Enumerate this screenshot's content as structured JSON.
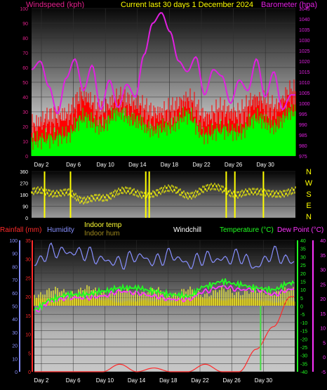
{
  "header": {
    "wind_label": "Windspeed (kph)",
    "title": "Current last 30 days 1 December 2024",
    "baro_label": "Barometer (hpa)"
  },
  "colors": {
    "background": "#000000",
    "wind_label": "#e0208a",
    "title": "#ffff00",
    "barometer": "#e020e0",
    "gust": "#ff0000",
    "avg_wind": "#00ff00",
    "direction": "#ffff00",
    "rain": "#ff2a2a",
    "humidity": "#8890ff",
    "indoor_temp": "#ffff33",
    "indoor_hum": "#a08a1e",
    "windchill": "#ffffff",
    "temperature": "#22ff22",
    "dew_point": "#ff33ff"
  },
  "day_labels": [
    "Day 2",
    "Day 6",
    "Day 10",
    "Day 14",
    "Day 18",
    "Day 22",
    "Day 26",
    "Day 30"
  ],
  "direction": {
    "ticks": [
      "360",
      "270",
      "180",
      "90",
      "0"
    ],
    "compass": [
      "N",
      "W",
      "S",
      "E",
      "N"
    ]
  },
  "legend": {
    "rainfall": "Rainfall (mm)",
    "humidity": "Humidity",
    "indoor_temp": "Indoor temp",
    "indoor_hum": "Indoor hum",
    "windchill": "Windchill",
    "temperature": "Temperature (°C)",
    "dew_point": "Dew Point (°C)"
  },
  "chart_data": [
    {
      "type": "line",
      "title": "Current last 30 days 1 December 2024",
      "x_ticks": [
        "Day 2",
        "Day 6",
        "Day 10",
        "Day 14",
        "Day 18",
        "Day 22",
        "Day 26",
        "Day 30"
      ],
      "y_left": {
        "label": "Windspeed (kph)",
        "range": [
          0,
          100
        ],
        "ticks": [
          "0",
          "10",
          "20",
          "30",
          "40",
          "50",
          "60",
          "70",
          "80",
          "90",
          "100"
        ]
      },
      "y_right": {
        "label": "Barometer (hpa)",
        "range": [
          975,
          1045
        ],
        "ticks": [
          "975",
          "980",
          "985",
          "990",
          "995",
          "1000",
          "1005",
          "1010",
          "1015",
          "1020",
          "1025",
          "1030",
          "1035",
          "1040",
          "1045"
        ]
      },
      "series": [
        {
          "name": "Barometer (hpa)",
          "axis": "right",
          "x": [
            1,
            2,
            3,
            4,
            5,
            6,
            7,
            8,
            9,
            10,
            11,
            12,
            13,
            14,
            15,
            16,
            17,
            18,
            19,
            20,
            21,
            22,
            23,
            24,
            25,
            26,
            27,
            28,
            29,
            30,
            31
          ],
          "values": [
            1016,
            1020,
            1008,
            995,
            1012,
            1021,
            1006,
            1018,
            997,
            1011,
            998,
            1009,
            1003,
            1023,
            1038,
            1043,
            1034,
            1020,
            1015,
            1022,
            1004,
            1016,
            1013,
            1000,
            1011,
            1006,
            1021,
            1003,
            1015,
            997,
            1004
          ]
        },
        {
          "name": "Gust",
          "axis": "left",
          "x": [
            1,
            3,
            5,
            7,
            9,
            11,
            13,
            15,
            17,
            19,
            21,
            23,
            25,
            27,
            29,
            31
          ],
          "values": [
            20,
            25,
            27,
            40,
            30,
            38,
            35,
            28,
            30,
            38,
            26,
            30,
            28,
            38,
            32,
            42
          ]
        },
        {
          "name": "Average wind",
          "axis": "left",
          "x": [
            1,
            3,
            5,
            7,
            9,
            11,
            13,
            15,
            17,
            19,
            21,
            23,
            25,
            27,
            29,
            31
          ],
          "values": [
            10,
            12,
            14,
            26,
            20,
            30,
            24,
            18,
            20,
            28,
            14,
            18,
            16,
            26,
            20,
            30
          ]
        }
      ]
    },
    {
      "type": "line",
      "y_left": {
        "range": [
          0,
          360
        ],
        "ticks": [
          "360",
          "270",
          "180",
          "90",
          "0"
        ]
      },
      "y_right": {
        "ticks": [
          "N",
          "W",
          "S",
          "E",
          "N"
        ]
      },
      "series": [
        {
          "name": "Wind direction",
          "x": [
            1,
            3,
            5,
            7,
            9,
            11,
            13,
            15,
            17,
            19,
            21,
            23,
            25,
            27,
            29,
            31
          ],
          "values": [
            210,
            190,
            230,
            120,
            180,
            205,
            195,
            210,
            215,
            200,
            225,
            230,
            205,
            190,
            215,
            200
          ]
        }
      ]
    },
    {
      "type": "line",
      "y_left": [
        {
          "label": "Rainfall (mm)",
          "range": [
            0,
            35
          ],
          "ticks": [
            "0",
            "5",
            "10",
            "15",
            "20",
            "25",
            "30",
            "35"
          ]
        },
        {
          "label": "Humidity",
          "range": [
            0,
            100
          ],
          "ticks": [
            "0",
            "10",
            "20",
            "30",
            "40",
            "50",
            "60",
            "70",
            "80",
            "90",
            "100"
          ]
        }
      ],
      "y_right": [
        {
          "label": "Temperature (°C)",
          "range": [
            -40,
            40
          ],
          "ticks": [
            "-40",
            "-35",
            "-30",
            "-25",
            "-20",
            "-15",
            "-10",
            "-5",
            "0",
            "5",
            "10",
            "15",
            "20",
            "25",
            "30",
            "35",
            "40"
          ]
        },
        {
          "label": "Dew Point (°C)",
          "range": [
            -5,
            40
          ],
          "ticks": [
            "-5",
            "0",
            "5",
            "10",
            "15",
            "20",
            "25",
            "30",
            "35",
            "40"
          ]
        }
      ],
      "series": [
        {
          "name": "Humidity",
          "x": [
            1,
            3,
            5,
            7,
            9,
            11,
            13,
            15,
            17,
            19,
            21,
            23,
            25,
            27,
            29,
            31
          ],
          "values": [
            82,
            92,
            91,
            90,
            85,
            83,
            88,
            84,
            89,
            82,
            87,
            85,
            88,
            80,
            90,
            84
          ]
        },
        {
          "name": "Indoor temp",
          "x": [
            1,
            3,
            5,
            7,
            9,
            11,
            13,
            15,
            17,
            19,
            21,
            23,
            25,
            27,
            29,
            31
          ],
          "values": [
            8,
            9,
            9,
            10,
            9,
            8,
            9,
            9,
            8,
            9,
            8,
            9,
            9,
            8,
            9,
            9
          ]
        },
        {
          "name": "Indoor hum",
          "x": [
            1,
            3,
            5,
            7,
            9,
            11,
            13,
            15,
            17,
            19,
            21,
            23,
            25,
            27,
            29,
            31
          ],
          "values": [
            4,
            4,
            3,
            4,
            4,
            3,
            4,
            4,
            3,
            4,
            4,
            3,
            4,
            4,
            3,
            4
          ]
        },
        {
          "name": "Temperature (°C)",
          "x": [
            1,
            3,
            5,
            7,
            9,
            11,
            13,
            15,
            17,
            19,
            21,
            23,
            25,
            27,
            29,
            31
          ],
          "values": [
            -2,
            4,
            7,
            7,
            9,
            11,
            11,
            9,
            7,
            6,
            12,
            15,
            13,
            11,
            10,
            14
          ]
        },
        {
          "name": "Dew Point (°C)",
          "x": [
            1,
            3,
            5,
            7,
            9,
            11,
            13,
            15,
            17,
            19,
            21,
            23,
            25,
            27,
            29,
            31
          ],
          "values": [
            -3,
            3,
            5,
            5,
            6,
            9,
            8,
            6,
            4,
            4,
            9,
            12,
            10,
            10,
            7,
            10
          ]
        },
        {
          "name": "Rainfall (mm)",
          "x": [
            1,
            3,
            5,
            7,
            9,
            11,
            13,
            15,
            17,
            19,
            21,
            23,
            25,
            27,
            29,
            31
          ],
          "values": [
            0,
            0,
            0,
            0,
            0,
            2,
            0,
            1,
            0,
            0,
            2,
            0,
            0,
            6,
            12,
            20
          ]
        }
      ]
    }
  ]
}
